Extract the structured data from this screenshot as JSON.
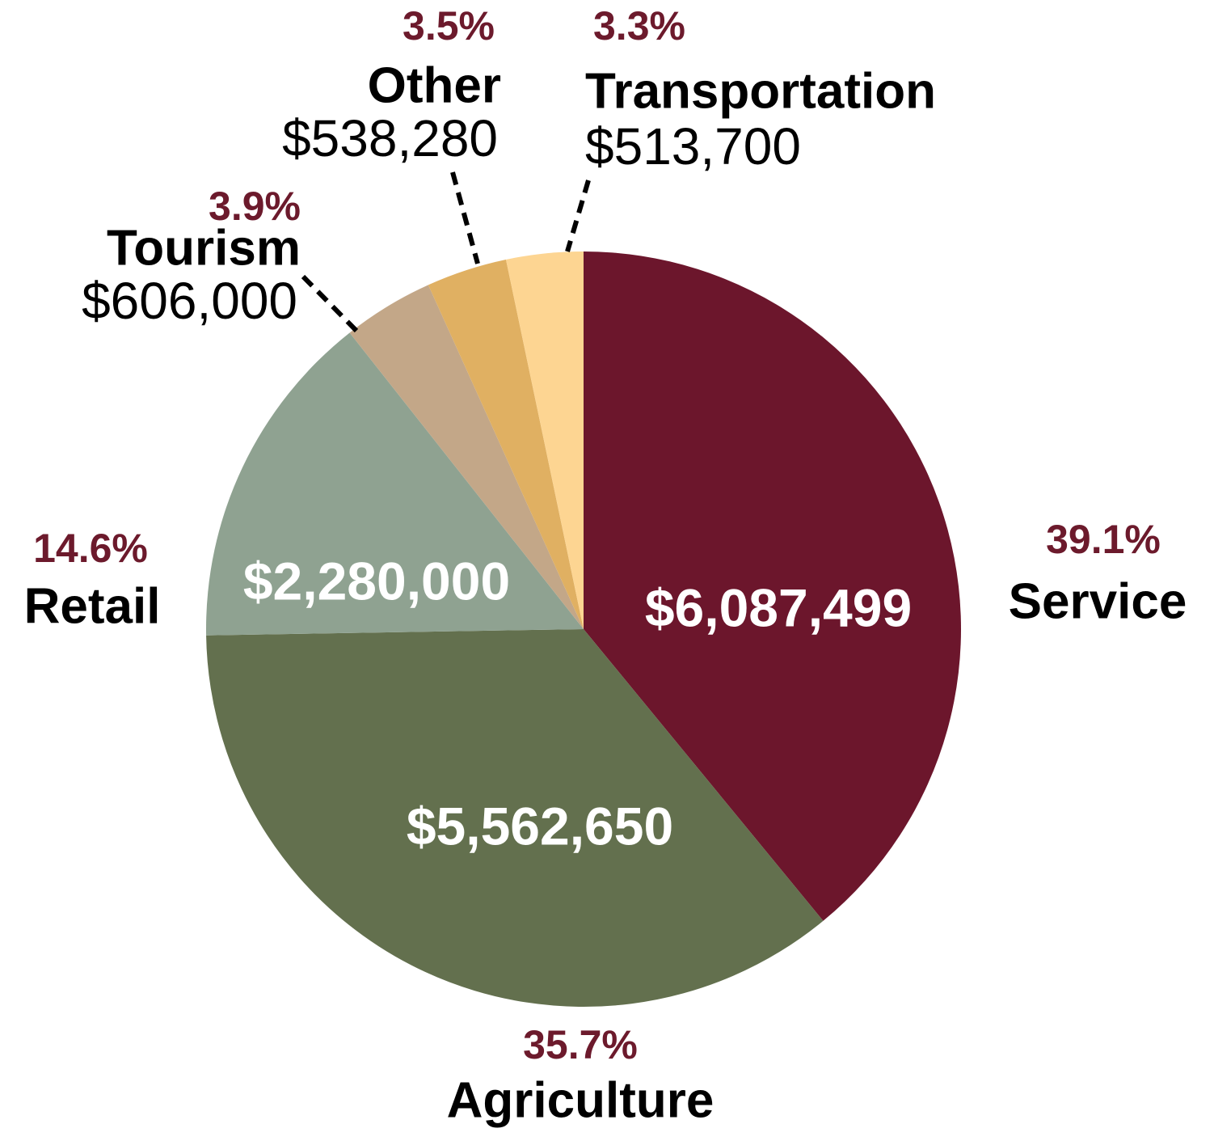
{
  "chart_data": {
    "type": "pie",
    "start_angle_deg": 0,
    "direction": "clockwise",
    "slices": [
      {
        "label": "Service",
        "value": 6087499,
        "value_label": "$6,087,499",
        "percent": 39.1,
        "percent_label": "39.1%",
        "color": "#6c162c",
        "label_position": "inside"
      },
      {
        "label": "Agriculture",
        "value": 5562650,
        "value_label": "$5,562,650",
        "percent": 35.7,
        "percent_label": "35.7%",
        "color": "#63704e",
        "label_position": "inside"
      },
      {
        "label": "Retail",
        "value": 2280000,
        "value_label": "$2,280,000",
        "percent": 14.6,
        "percent_label": "14.6%",
        "color": "#8fa291",
        "label_position": "inside"
      },
      {
        "label": "Tourism",
        "value": 606000,
        "value_label": "$606,000",
        "percent": 3.9,
        "percent_label": "3.9%",
        "color": "#c3a788",
        "label_position": "outside"
      },
      {
        "label": "Other",
        "value": 538280,
        "value_label": "$538,280",
        "percent": 3.5,
        "percent_label": "3.5%",
        "color": "#e0b062",
        "label_position": "outside"
      },
      {
        "label": "Transportation",
        "value": 513700,
        "value_label": "$513,700",
        "percent": 3.3,
        "percent_label": "3.3%",
        "color": "#fdd592",
        "label_position": "outside"
      }
    ],
    "percent_color": "#6c1a2c",
    "legend": "none"
  }
}
